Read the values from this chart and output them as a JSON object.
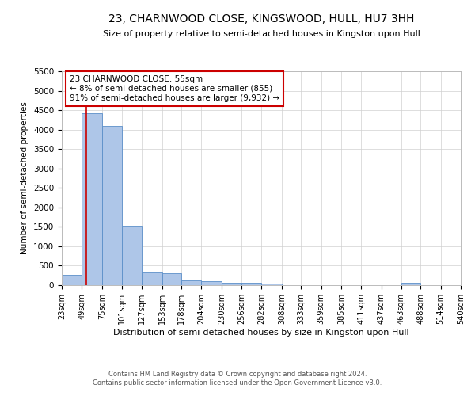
{
  "title": "23, CHARNWOOD CLOSE, KINGSWOOD, HULL, HU7 3HH",
  "subtitle": "Size of property relative to semi-detached houses in Kingston upon Hull",
  "xlabel": "Distribution of semi-detached houses by size in Kingston upon Hull",
  "ylabel": "Number of semi-detached properties",
  "footer_line1": "Contains HM Land Registry data © Crown copyright and database right 2024.",
  "footer_line2": "Contains public sector information licensed under the Open Government Licence v3.0.",
  "property_label": "23 CHARNWOOD CLOSE: 55sqm",
  "annotation_line1": "← 8% of semi-detached houses are smaller (855)",
  "annotation_line2": "91% of semi-detached houses are larger (9,932) →",
  "bin_edges": [
    23,
    49,
    75,
    101,
    127,
    153,
    178,
    204,
    230,
    256,
    282,
    308,
    333,
    359,
    385,
    411,
    437,
    463,
    488,
    514,
    540
  ],
  "bar_heights": [
    270,
    4430,
    4100,
    1530,
    320,
    310,
    120,
    95,
    65,
    55,
    50,
    0,
    0,
    0,
    0,
    0,
    0,
    55,
    0,
    0
  ],
  "bar_color": "#aec6e8",
  "bar_edge_color": "#5b8fc9",
  "red_line_x": 55,
  "ylim": [
    0,
    5500
  ],
  "yticks": [
    0,
    500,
    1000,
    1500,
    2000,
    2500,
    3000,
    3500,
    4000,
    4500,
    5000,
    5500
  ],
  "annotation_box_color": "#ffffff",
  "annotation_box_edge_color": "#cc0000",
  "grid_color": "#d0d0d0",
  "background_color": "#ffffff"
}
